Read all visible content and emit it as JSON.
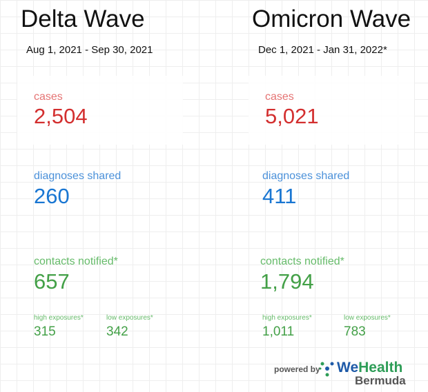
{
  "waves": [
    {
      "title": "Delta Wave",
      "dates": "Aug 1, 2021 - Sep 30, 2021",
      "cases_label": "cases",
      "cases": "2,504",
      "diag_label": "diagnoses shared",
      "diag": "260",
      "contacts_label": "contacts notified*",
      "contacts": "657",
      "high_label": "high exposures*",
      "high": "315",
      "low_label": "low exposures*",
      "low": "342"
    },
    {
      "title": "Omicron Wave",
      "dates": "Dec 1, 2021 - Jan 31, 2022*",
      "cases_label": "cases",
      "cases": "5,021",
      "diag_label": "diagnoses shared",
      "diag": "411",
      "contacts_label": "contacts notified*",
      "contacts": "1,794",
      "high_label": "high exposures*",
      "high": "1,011",
      "low_label": "low exposures*",
      "low": "783"
    }
  ],
  "footer": {
    "powered_by": "powered by",
    "brand_we": "We",
    "brand_health": "Health",
    "region": "Bermuda"
  }
}
